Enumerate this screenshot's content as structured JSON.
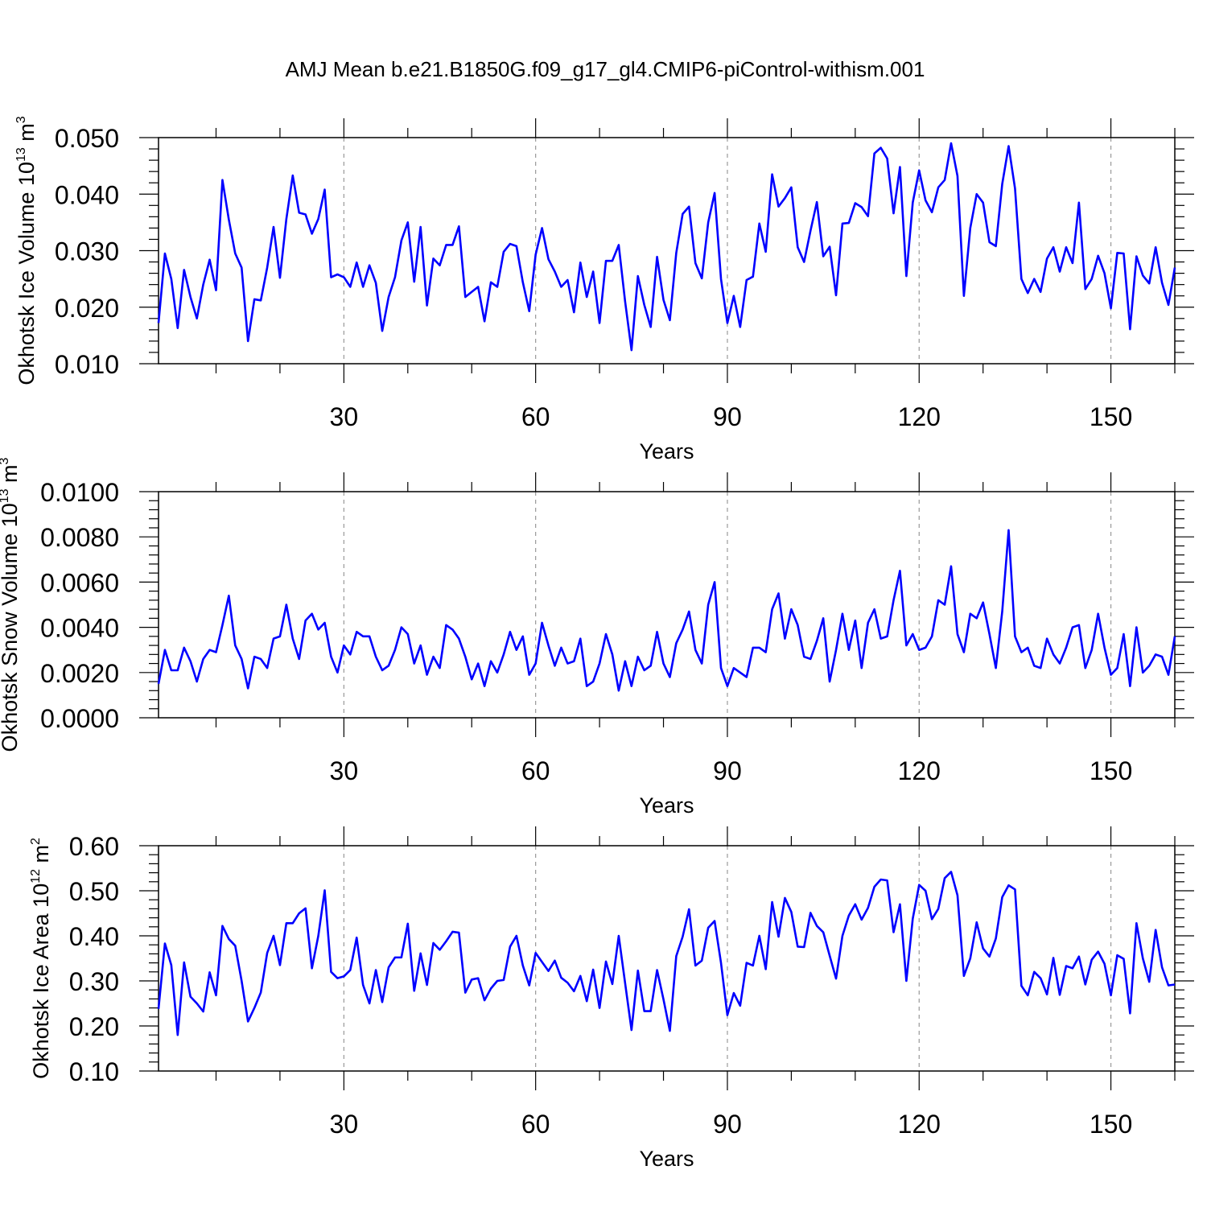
{
  "colors": {
    "line": "#0000ff",
    "axis": "#000000",
    "grid": "#999999",
    "background": "#ffffff"
  },
  "chart_data": [
    {
      "type": "line",
      "title": "AMJ Mean b.e21.B1850G.f09_g17_gl4.CMIP6-piControl-withism.001",
      "xlabel": "Years",
      "ylabel": {
        "text": "Okhotsk Ice Volume 10",
        "exponent": "13",
        "unit": " m",
        "unit_exponent": "3"
      },
      "xlim": [
        1,
        160
      ],
      "ylim": [
        0.01,
        0.05
      ],
      "xticks": [
        30,
        60,
        90,
        120,
        150
      ],
      "xtick_labels": [
        "30",
        "60",
        "90",
        "120",
        "150"
      ],
      "yticks": [
        0.01,
        0.02,
        0.03,
        0.04,
        0.05
      ],
      "ytick_labels": [
        "0.010",
        "0.020",
        "0.030",
        "0.040",
        "0.050"
      ],
      "grid": "vertical dashed at major x ticks",
      "series": [
        {
          "name": "Okhotsk Ice Volume",
          "values": [
            0.0172,
            0.0295,
            0.025,
            0.0163,
            0.0266,
            0.0218,
            0.018,
            0.024,
            0.0284,
            0.023,
            0.0425,
            0.0355,
            0.0295,
            0.027,
            0.014,
            0.0214,
            0.0212,
            0.027,
            0.0342,
            0.0252,
            0.0356,
            0.0433,
            0.0367,
            0.0364,
            0.033,
            0.0356,
            0.0408,
            0.0253,
            0.0258,
            0.0253,
            0.0236,
            0.0279,
            0.0236,
            0.0274,
            0.0243,
            0.0158,
            0.0218,
            0.0253,
            0.0318,
            0.035,
            0.0245,
            0.0342,
            0.0203,
            0.0286,
            0.0274,
            0.031,
            0.031,
            0.0343,
            0.0218,
            0.0227,
            0.0236,
            0.0175,
            0.0244,
            0.0236,
            0.0298,
            0.0312,
            0.0308,
            0.0244,
            0.0193,
            0.0293,
            0.034,
            0.0285,
            0.0263,
            0.0236,
            0.0248,
            0.0191,
            0.0279,
            0.0218,
            0.0263,
            0.0172,
            0.0282,
            0.0282,
            0.031,
            0.021,
            0.0124,
            0.0255,
            0.0204,
            0.0165,
            0.0289,
            0.0213,
            0.0177,
            0.0296,
            0.0365,
            0.0378,
            0.0278,
            0.0251,
            0.035,
            0.0402,
            0.025,
            0.0172,
            0.022,
            0.0165,
            0.0248,
            0.0254,
            0.0348,
            0.0298,
            0.0435,
            0.0378,
            0.0393,
            0.0412,
            0.0306,
            0.028,
            0.0335,
            0.0386,
            0.029,
            0.0307,
            0.0221,
            0.0348,
            0.0349,
            0.0384,
            0.0377,
            0.0361,
            0.0472,
            0.0482,
            0.0463,
            0.0366,
            0.0448,
            0.0255,
            0.0385,
            0.0442,
            0.0389,
            0.0368,
            0.0412,
            0.0425,
            0.049,
            0.0432,
            0.022,
            0.034,
            0.04,
            0.0385,
            0.0315,
            0.0308,
            0.0418,
            0.0485,
            0.041,
            0.025,
            0.0225,
            0.025,
            0.0227,
            0.0286,
            0.0306,
            0.0263,
            0.0306,
            0.0278,
            0.0385,
            0.0232,
            0.025,
            0.0291,
            0.026,
            0.0198,
            0.0296,
            0.0295,
            0.0161,
            0.029,
            0.0256,
            0.0242,
            0.0306,
            0.0243,
            0.0204,
            0.027
          ]
        }
      ]
    },
    {
      "type": "line",
      "title": "",
      "xlabel": "Years",
      "ylabel": {
        "text": "Okhotsk Snow Volume 10",
        "exponent": "13",
        "unit": " m",
        "unit_exponent": "3"
      },
      "xlim": [
        1,
        160
      ],
      "ylim": [
        0.0,
        0.01
      ],
      "xticks": [
        30,
        60,
        90,
        120,
        150
      ],
      "xtick_labels": [
        "30",
        "60",
        "90",
        "120",
        "150"
      ],
      "yticks": [
        0.0,
        0.002,
        0.004,
        0.006,
        0.008,
        0.01
      ],
      "ytick_labels": [
        "0.0000",
        "0.0020",
        "0.0040",
        "0.0060",
        "0.0080",
        "0.0100"
      ],
      "grid": "vertical dashed at major x ticks",
      "series": [
        {
          "name": "Okhotsk Snow Volume",
          "values": [
            0.0015,
            0.003,
            0.0021,
            0.0021,
            0.0031,
            0.0025,
            0.0016,
            0.0026,
            0.003,
            0.0029,
            0.0041,
            0.0054,
            0.0032,
            0.0026,
            0.0013,
            0.0027,
            0.0026,
            0.0022,
            0.0035,
            0.0036,
            0.005,
            0.0035,
            0.0026,
            0.0043,
            0.0046,
            0.0039,
            0.0042,
            0.0027,
            0.002,
            0.0032,
            0.0028,
            0.0038,
            0.0036,
            0.0036,
            0.0027,
            0.0021,
            0.0023,
            0.003,
            0.004,
            0.0037,
            0.0024,
            0.0032,
            0.0019,
            0.0027,
            0.0022,
            0.0041,
            0.0039,
            0.0035,
            0.0027,
            0.0017,
            0.0024,
            0.0014,
            0.0025,
            0.002,
            0.0028,
            0.0038,
            0.003,
            0.0036,
            0.0019,
            0.0024,
            0.0042,
            0.0032,
            0.0023,
            0.0031,
            0.0024,
            0.0025,
            0.0035,
            0.0014,
            0.0016,
            0.0024,
            0.0037,
            0.0028,
            0.0012,
            0.0025,
            0.0014,
            0.0027,
            0.0021,
            0.0023,
            0.0038,
            0.0024,
            0.0018,
            0.0033,
            0.0039,
            0.0047,
            0.003,
            0.0024,
            0.005,
            0.006,
            0.0022,
            0.0014,
            0.0022,
            0.002,
            0.0018,
            0.0031,
            0.0031,
            0.0029,
            0.0048,
            0.0055,
            0.0035,
            0.0048,
            0.0041,
            0.0027,
            0.0026,
            0.0034,
            0.0044,
            0.0016,
            0.003,
            0.0046,
            0.003,
            0.0043,
            0.0022,
            0.0042,
            0.0048,
            0.0035,
            0.0036,
            0.0052,
            0.0065,
            0.0032,
            0.0037,
            0.003,
            0.0031,
            0.0036,
            0.0052,
            0.005,
            0.0067,
            0.0037,
            0.0029,
            0.0046,
            0.0044,
            0.0051,
            0.0037,
            0.0022,
            0.0047,
            0.0083,
            0.0036,
            0.0029,
            0.0031,
            0.0023,
            0.0022,
            0.0035,
            0.0028,
            0.0024,
            0.0031,
            0.004,
            0.0041,
            0.0022,
            0.003,
            0.0046,
            0.0031,
            0.0019,
            0.0022,
            0.0037,
            0.0014,
            0.004,
            0.002,
            0.0023,
            0.0028,
            0.0027,
            0.0019,
            0.0036
          ]
        }
      ]
    },
    {
      "type": "line",
      "title": "",
      "xlabel": "Years",
      "ylabel": {
        "text": "Okhotsk Ice Area 10",
        "exponent": "12",
        "unit": " m",
        "unit_exponent": "2"
      },
      "xlim": [
        1,
        160
      ],
      "ylim": [
        0.1,
        0.6
      ],
      "xticks": [
        30,
        60,
        90,
        120,
        150
      ],
      "xtick_labels": [
        "30",
        "60",
        "90",
        "120",
        "150"
      ],
      "yticks": [
        0.1,
        0.2,
        0.3,
        0.4,
        0.5,
        0.6
      ],
      "ytick_labels": [
        "0.10",
        "0.20",
        "0.30",
        "0.40",
        "0.50",
        "0.60"
      ],
      "grid": "vertical dashed at major x ticks",
      "series": [
        {
          "name": "Okhotsk Ice Area",
          "values": [
            0.238,
            0.383,
            0.335,
            0.18,
            0.341,
            0.265,
            0.25,
            0.232,
            0.319,
            0.268,
            0.422,
            0.393,
            0.378,
            0.3,
            0.21,
            0.24,
            0.274,
            0.362,
            0.4,
            0.335,
            0.428,
            0.428,
            0.45,
            0.461,
            0.328,
            0.4,
            0.501,
            0.32,
            0.306,
            0.31,
            0.324,
            0.396,
            0.291,
            0.25,
            0.324,
            0.253,
            0.33,
            0.352,
            0.352,
            0.427,
            0.278,
            0.361,
            0.291,
            0.384,
            0.369,
            0.388,
            0.409,
            0.407,
            0.274,
            0.303,
            0.306,
            0.257,
            0.283,
            0.3,
            0.302,
            0.376,
            0.4,
            0.334,
            0.29,
            0.362,
            0.342,
            0.322,
            0.345,
            0.307,
            0.296,
            0.277,
            0.311,
            0.255,
            0.325,
            0.24,
            0.343,
            0.293,
            0.4,
            0.295,
            0.191,
            0.323,
            0.233,
            0.233,
            0.324,
            0.259,
            0.189,
            0.355,
            0.398,
            0.459,
            0.334,
            0.345,
            0.418,
            0.433,
            0.34,
            0.224,
            0.273,
            0.245,
            0.34,
            0.334,
            0.4,
            0.326,
            0.475,
            0.398,
            0.484,
            0.453,
            0.376,
            0.375,
            0.451,
            0.422,
            0.408,
            0.356,
            0.305,
            0.4,
            0.445,
            0.47,
            0.436,
            0.462,
            0.509,
            0.525,
            0.523,
            0.408,
            0.47,
            0.3,
            0.438,
            0.513,
            0.5,
            0.437,
            0.46,
            0.528,
            0.542,
            0.49,
            0.311,
            0.35,
            0.43,
            0.372,
            0.354,
            0.394,
            0.486,
            0.512,
            0.503,
            0.289,
            0.268,
            0.32,
            0.306,
            0.27,
            0.351,
            0.269,
            0.333,
            0.328,
            0.354,
            0.292,
            0.347,
            0.365,
            0.338,
            0.268,
            0.357,
            0.349,
            0.228,
            0.428,
            0.35,
            0.298,
            0.413,
            0.33,
            0.29,
            0.292
          ]
        }
      ]
    }
  ]
}
